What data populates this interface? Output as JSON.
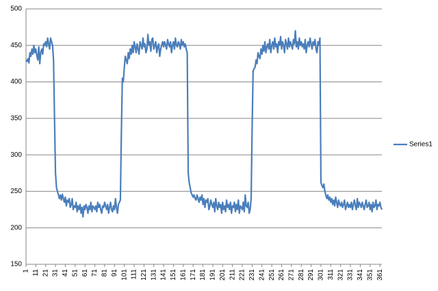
{
  "chart_data": {
    "type": "line",
    "x": [
      1,
      2,
      3,
      4,
      5,
      6,
      7,
      8,
      9,
      10,
      11,
      12,
      13,
      14,
      15,
      16,
      17,
      18,
      19,
      20,
      21,
      22,
      23,
      24,
      25,
      26,
      27,
      28,
      29,
      30,
      31,
      32,
      33,
      34,
      35,
      36,
      37,
      38,
      39,
      40,
      41,
      42,
      43,
      44,
      45,
      46,
      47,
      48,
      49,
      50,
      51,
      52,
      53,
      54,
      55,
      56,
      57,
      58,
      59,
      60,
      61,
      62,
      63,
      64,
      65,
      66,
      67,
      68,
      69,
      70,
      71,
      72,
      73,
      74,
      75,
      76,
      77,
      78,
      79,
      80,
      81,
      82,
      83,
      84,
      85,
      86,
      87,
      88,
      89,
      90,
      91,
      92,
      93,
      94,
      95,
      96,
      97,
      98,
      99,
      100,
      101,
      102,
      103,
      104,
      105,
      106,
      107,
      108,
      109,
      110,
      111,
      112,
      113,
      114,
      115,
      116,
      117,
      118,
      119,
      120,
      121,
      122,
      123,
      124,
      125,
      126,
      127,
      128,
      129,
      130,
      131,
      132,
      133,
      134,
      135,
      136,
      137,
      138,
      139,
      140,
      141,
      142,
      143,
      144,
      145,
      146,
      147,
      148,
      149,
      150,
      151,
      152,
      153,
      154,
      155,
      156,
      157,
      158,
      159,
      160,
      161,
      162,
      163,
      164,
      165,
      166,
      167,
      168,
      169,
      170,
      171,
      172,
      173,
      174,
      175,
      176,
      177,
      178,
      179,
      180,
      181,
      182,
      183,
      184,
      185,
      186,
      187,
      188,
      189,
      190,
      191,
      192,
      193,
      194,
      195,
      196,
      197,
      198,
      199,
      200,
      201,
      202,
      203,
      204,
      205,
      206,
      207,
      208,
      209,
      210,
      211,
      212,
      213,
      214,
      215,
      216,
      217,
      218,
      219,
      220,
      221,
      222,
      223,
      224,
      225,
      226,
      227,
      228,
      229,
      230,
      231,
      232,
      233,
      234,
      235,
      236,
      237,
      238,
      239,
      240,
      241,
      242,
      243,
      244,
      245,
      246,
      247,
      248,
      249,
      250,
      251,
      252,
      253,
      254,
      255,
      256,
      257,
      258,
      259,
      260,
      261,
      262,
      263,
      264,
      265,
      266,
      267,
      268,
      269,
      270,
      271,
      272,
      273,
      274,
      275,
      276,
      277,
      278,
      279,
      280,
      281,
      282,
      283,
      284,
      285,
      286,
      287,
      288,
      289,
      290,
      291,
      292,
      293,
      294,
      295,
      296,
      297,
      298,
      299,
      300,
      301,
      302,
      303,
      304,
      305,
      306,
      307,
      308,
      309,
      310,
      311,
      312,
      313,
      314,
      315,
      316,
      317,
      318,
      319,
      320,
      321,
      322,
      323,
      324,
      325,
      326,
      327,
      328,
      329,
      330,
      331,
      332,
      333,
      334,
      335,
      336,
      337,
      338,
      339,
      340,
      341,
      342,
      343,
      344,
      345,
      346,
      347,
      348,
      349,
      350,
      351,
      352,
      353,
      354,
      355,
      356,
      357,
      358,
      359,
      360,
      361,
      362,
      363
    ],
    "series": [
      {
        "name": "Series1",
        "color": "#4a7ebb",
        "values": [
          430,
          428,
          432,
          426,
          440,
          435,
          445,
          438,
          450,
          440,
          445,
          436,
          430,
          448,
          425,
          440,
          445,
          438,
          452,
          450,
          455,
          448,
          460,
          452,
          445,
          460,
          455,
          450,
          430,
          350,
          275,
          255,
          250,
          245,
          240,
          245,
          238,
          246,
          240,
          235,
          242,
          230,
          238,
          235,
          240,
          228,
          232,
          240,
          225,
          230,
          228,
          235,
          222,
          230,
          225,
          232,
          220,
          228,
          215,
          230,
          225,
          232,
          228,
          220,
          230,
          225,
          235,
          222,
          230,
          228,
          225,
          230,
          222,
          235,
          228,
          232,
          225,
          220,
          230,
          228,
          235,
          230,
          225,
          232,
          220,
          228,
          235,
          225,
          222,
          230,
          225,
          240,
          228,
          220,
          232,
          235,
          238,
          330,
          405,
          400,
          420,
          435,
          430,
          425,
          440,
          432,
          445,
          438,
          450,
          440,
          455,
          448,
          440,
          452,
          445,
          438,
          455,
          450,
          445,
          460,
          448,
          452,
          440,
          445,
          465,
          450,
          455,
          442,
          458,
          460,
          445,
          450,
          455,
          440,
          448,
          452,
          435,
          445,
          450,
          455,
          448,
          455,
          450,
          445,
          458,
          452,
          448,
          455,
          440,
          450,
          455,
          445,
          460,
          450,
          448,
          455,
          452,
          445,
          458,
          450,
          455,
          448,
          452,
          445,
          440,
          275,
          262,
          255,
          248,
          245,
          242,
          245,
          240,
          238,
          245,
          240,
          235,
          242,
          238,
          245,
          232,
          240,
          228,
          238,
          235,
          240,
          225,
          230,
          238,
          232,
          228,
          235,
          222,
          240,
          230,
          225,
          235,
          228,
          232,
          220,
          235,
          225,
          230,
          222,
          238,
          228,
          232,
          225,
          235,
          220,
          230,
          228,
          235,
          222,
          232,
          225,
          238,
          220,
          230,
          228,
          225,
          235,
          222,
          245,
          230,
          228,
          235,
          220,
          225,
          240,
          335,
          415,
          418,
          420,
          430,
          425,
          440,
          435,
          432,
          445,
          438,
          450,
          442,
          455,
          440,
          448,
          452,
          445,
          458,
          440,
          450,
          455,
          445,
          460,
          448,
          452,
          440,
          455,
          450,
          462,
          445,
          455,
          450,
          440,
          458,
          452,
          445,
          460,
          448,
          455,
          450,
          445,
          458,
          452,
          470,
          448,
          455,
          445,
          460,
          450,
          455,
          448,
          452,
          445,
          458,
          440,
          450,
          455,
          448,
          460,
          452,
          445,
          455,
          450,
          458,
          445,
          440,
          455,
          450,
          460,
          262,
          258,
          255,
          260,
          250,
          245,
          240,
          245,
          238,
          242,
          235,
          240,
          232,
          238,
          230,
          242,
          235,
          228,
          238,
          232,
          230,
          235,
          228,
          232,
          238,
          225,
          230,
          235,
          228,
          232,
          228,
          235,
          225,
          232,
          238,
          230,
          225,
          240,
          228,
          235,
          232,
          228,
          235,
          230,
          225,
          232,
          238,
          228,
          230,
          235,
          225,
          232,
          222,
          235,
          228,
          230,
          238,
          225,
          232,
          230,
          235,
          228,
          225
        ]
      }
    ],
    "xlim": [
      1,
      363
    ],
    "xticks": [
      1,
      11,
      21,
      31,
      41,
      51,
      61,
      71,
      81,
      91,
      101,
      111,
      121,
      131,
      141,
      151,
      161,
      171,
      181,
      191,
      201,
      211,
      221,
      231,
      241,
      251,
      261,
      271,
      281,
      291,
      301,
      311,
      321,
      331,
      341,
      351,
      361
    ],
    "ylim": [
      150,
      500
    ],
    "yticks": [
      150,
      200,
      250,
      300,
      350,
      400,
      450,
      500
    ],
    "grid": true,
    "legend": "right"
  }
}
